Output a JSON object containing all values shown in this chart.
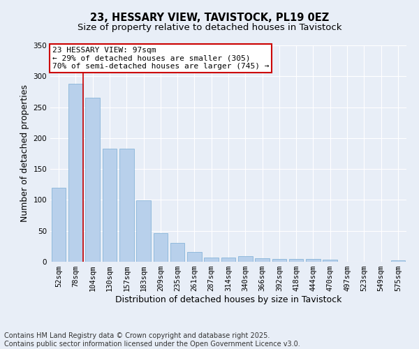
{
  "title": "23, HESSARY VIEW, TAVISTOCK, PL19 0EZ",
  "subtitle": "Size of property relative to detached houses in Tavistock",
  "xlabel": "Distribution of detached houses by size in Tavistock",
  "ylabel": "Number of detached properties",
  "bar_color": "#b8d0eb",
  "bar_edge_color": "#7aadd4",
  "background_color": "#e8eef7",
  "grid_color": "#ffffff",
  "categories": [
    "52sqm",
    "78sqm",
    "104sqm",
    "130sqm",
    "157sqm",
    "183sqm",
    "209sqm",
    "235sqm",
    "261sqm",
    "287sqm",
    "314sqm",
    "340sqm",
    "366sqm",
    "392sqm",
    "418sqm",
    "444sqm",
    "470sqm",
    "497sqm",
    "523sqm",
    "549sqm",
    "575sqm"
  ],
  "values": [
    120,
    288,
    265,
    183,
    183,
    99,
    46,
    30,
    16,
    7,
    7,
    9,
    6,
    5,
    4,
    5,
    3,
    0,
    0,
    0,
    2
  ],
  "ylim": [
    0,
    350
  ],
  "yticks": [
    0,
    50,
    100,
    150,
    200,
    250,
    300,
    350
  ],
  "vline_color": "#cc0000",
  "vline_bin_index": 1,
  "annotation_line1": "23 HESSARY VIEW: 97sqm",
  "annotation_line2": "← 29% of detached houses are smaller (305)",
  "annotation_line3": "70% of semi-detached houses are larger (745) →",
  "annotation_box_color": "#ffffff",
  "annotation_box_edge_color": "#cc0000",
  "footer_line1": "Contains HM Land Registry data © Crown copyright and database right 2025.",
  "footer_line2": "Contains public sector information licensed under the Open Government Licence v3.0.",
  "title_fontsize": 10.5,
  "subtitle_fontsize": 9.5,
  "axis_label_fontsize": 9,
  "tick_fontsize": 7.5,
  "annotation_fontsize": 8,
  "footer_fontsize": 7
}
